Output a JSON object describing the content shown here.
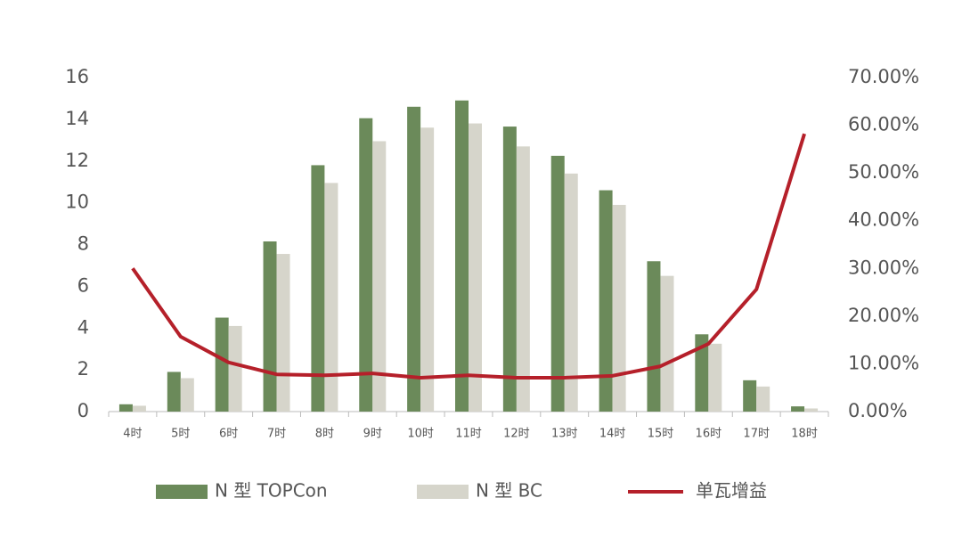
{
  "chart_data": {
    "type": "bar",
    "categories": [
      "4时",
      "5时",
      "6时",
      "7时",
      "8时",
      "9时",
      "10时",
      "11时",
      "12时",
      "13时",
      "14时",
      "15时",
      "16时",
      "17时",
      "18时"
    ],
    "series": [
      {
        "name": "N 型 TOPCon",
        "color": "#6b8a5a",
        "values": [
          0.35,
          1.9,
          4.5,
          8.15,
          11.8,
          14.05,
          14.6,
          14.9,
          13.65,
          12.25,
          10.6,
          7.2,
          3.7,
          1.5,
          0.25
        ]
      },
      {
        "name": "N 型 BC",
        "color": "#d6d5cb",
        "values": [
          0.28,
          1.6,
          4.1,
          7.55,
          10.95,
          12.95,
          13.6,
          13.8,
          12.7,
          11.4,
          9.9,
          6.5,
          3.25,
          1.2,
          0.15
        ]
      },
      {
        "name": "单瓦增益",
        "color": "#b5202a",
        "type": "line",
        "axis": "y2",
        "values": [
          30,
          15.7,
          10.3,
          7.8,
          7.6,
          8.0,
          7.1,
          7.6,
          7.1,
          7.1,
          7.5,
          9.5,
          14.2,
          25.6,
          58.2
        ]
      }
    ],
    "ylim": [
      0,
      16
    ],
    "yticks": [
      0,
      2,
      4,
      6,
      8,
      10,
      12,
      14,
      16
    ],
    "y2lim": [
      0,
      70
    ],
    "y2ticks": [
      {
        "value": 0,
        "label": "0.00%"
      },
      {
        "value": 10,
        "label": "10.00%"
      },
      {
        "value": 20,
        "label": "20.00%"
      },
      {
        "value": 30,
        "label": "30.00%"
      },
      {
        "value": 40,
        "label": "40.00%"
      },
      {
        "value": 50,
        "label": "50.00%"
      },
      {
        "value": 60,
        "label": "60.00%"
      },
      {
        "value": 70,
        "label": "70.00%"
      }
    ],
    "legend": "bottom"
  }
}
